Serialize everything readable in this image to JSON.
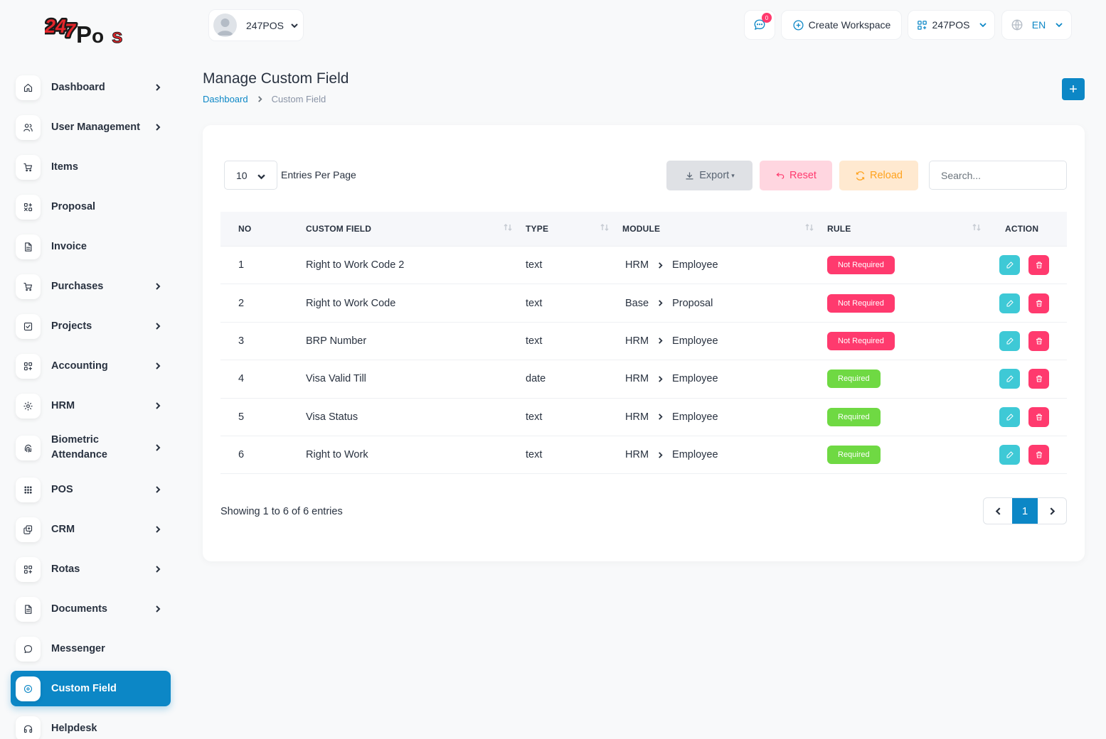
{
  "brand": {
    "logo_text": "247Pos"
  },
  "sidebar": {
    "items": [
      {
        "label": "Dashboard",
        "icon": "home-icon",
        "has_arrow": true
      },
      {
        "label": "User Management",
        "icon": "users-icon",
        "has_arrow": true
      },
      {
        "label": "Items",
        "icon": "cart-icon",
        "has_arrow": false
      },
      {
        "label": "Proposal",
        "icon": "proposal-icon",
        "has_arrow": false
      },
      {
        "label": "Invoice",
        "icon": "file-icon",
        "has_arrow": false
      },
      {
        "label": "Purchases",
        "icon": "cart-icon",
        "has_arrow": true
      },
      {
        "label": "Projects",
        "icon": "check-square-icon",
        "has_arrow": true
      },
      {
        "label": "Accounting",
        "icon": "apps-icon",
        "has_arrow": true
      },
      {
        "label": "HRM",
        "icon": "circle-dots-icon",
        "has_arrow": true
      },
      {
        "label": "Biometric Attendance",
        "icon": "fingerprint-icon",
        "has_arrow": true
      },
      {
        "label": "POS",
        "icon": "grid-dots-icon",
        "has_arrow": true
      },
      {
        "label": "CRM",
        "icon": "layers-icon",
        "has_arrow": true
      },
      {
        "label": "Rotas",
        "icon": "apps-icon",
        "has_arrow": true
      },
      {
        "label": "Documents",
        "icon": "document-icon",
        "has_arrow": true
      },
      {
        "label": "Messenger",
        "icon": "message-icon",
        "has_arrow": false
      },
      {
        "label": "Custom Field",
        "icon": "plus-circle-icon",
        "has_arrow": false,
        "active": true
      },
      {
        "label": "Helpdesk",
        "icon": "headphones-icon",
        "has_arrow": false
      }
    ]
  },
  "header": {
    "user_name": "247POS",
    "notification_count": "0",
    "create_workspace_label": "Create Workspace",
    "workspace_name": "247POS",
    "language": "EN"
  },
  "page": {
    "title": "Manage Custom Field",
    "breadcrumb": {
      "home": "Dashboard",
      "current": "Custom Field"
    },
    "add_button": "+"
  },
  "toolbar": {
    "entries_value": "10",
    "entries_label": "Entries Per Page",
    "export_label": "Export",
    "reset_label": "Reset",
    "reload_label": "Reload",
    "search_placeholder": "Search..."
  },
  "table": {
    "headers": {
      "no": "NO",
      "custom_field": "CUSTOM FIELD",
      "type": "TYPE",
      "module": "MODULE",
      "rule": "RULE",
      "action": "ACTION"
    },
    "rows": [
      {
        "no": "1",
        "field": "Right to Work Code 2",
        "type": "text",
        "module": "HRM",
        "submodule": "Employee",
        "rule": "Not Required"
      },
      {
        "no": "2",
        "field": "Right to Work Code",
        "type": "text",
        "module": "Base",
        "submodule": "Proposal",
        "rule": "Not Required"
      },
      {
        "no": "3",
        "field": "BRP Number",
        "type": "text",
        "module": "HRM",
        "submodule": "Employee",
        "rule": "Not Required"
      },
      {
        "no": "4",
        "field": "Visa Valid Till",
        "type": "date",
        "module": "HRM",
        "submodule": "Employee",
        "rule": "Required"
      },
      {
        "no": "5",
        "field": "Visa Status",
        "type": "text",
        "module": "HRM",
        "submodule": "Employee",
        "rule": "Required"
      },
      {
        "no": "6",
        "field": "Right to Work",
        "type": "text",
        "module": "HRM",
        "submodule": "Employee",
        "rule": "Required"
      }
    ]
  },
  "footer": {
    "showing": "Showing 1 to 6 of 6 entries",
    "current_page": "1"
  },
  "colors": {
    "primary": "#0c87c6",
    "danger": "#ff3a6e",
    "success": "#6fd943",
    "info": "#3ec9d6",
    "warning": "#ffa21d"
  }
}
